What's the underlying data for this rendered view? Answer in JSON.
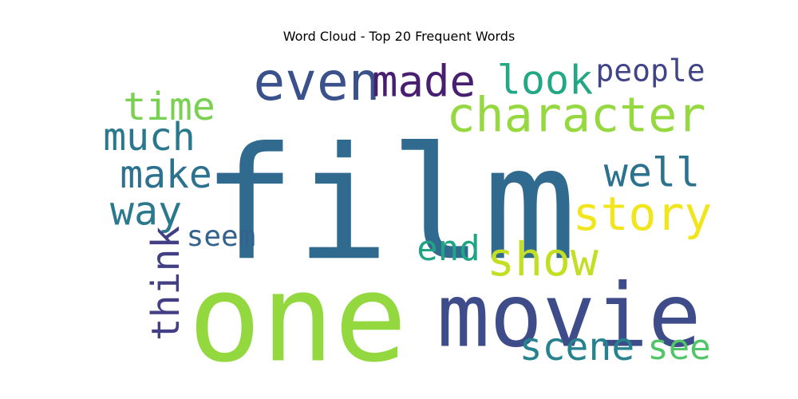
{
  "chart_data": {
    "type": "wordcloud",
    "title": "Word Cloud - Top 20 Frequent Words",
    "words": [
      {
        "text": "film",
        "color": "#306a8e"
      },
      {
        "text": "one",
        "color": "#94d840"
      },
      {
        "text": "movie",
        "color": "#3e4c8a"
      },
      {
        "text": "even",
        "color": "#3b518b"
      },
      {
        "text": "character",
        "color": "#95d840"
      },
      {
        "text": "made",
        "color": "#481f70"
      },
      {
        "text": "look",
        "color": "#22a884"
      },
      {
        "text": "people",
        "color": "#414487"
      },
      {
        "text": "time",
        "color": "#7ad151"
      },
      {
        "text": "much",
        "color": "#2a788e"
      },
      {
        "text": "make",
        "color": "#2c728e"
      },
      {
        "text": "way",
        "color": "#2a788e"
      },
      {
        "text": "well",
        "color": "#2c728e"
      },
      {
        "text": "story",
        "color": "#f1e51d"
      },
      {
        "text": "show",
        "color": "#c2df23"
      },
      {
        "text": "end",
        "color": "#20a486"
      },
      {
        "text": "seem",
        "color": "#33638d"
      },
      {
        "text": "think",
        "color": "#423f85"
      },
      {
        "text": "scene",
        "color": "#26828e"
      },
      {
        "text": "see",
        "color": "#52c569"
      }
    ]
  }
}
